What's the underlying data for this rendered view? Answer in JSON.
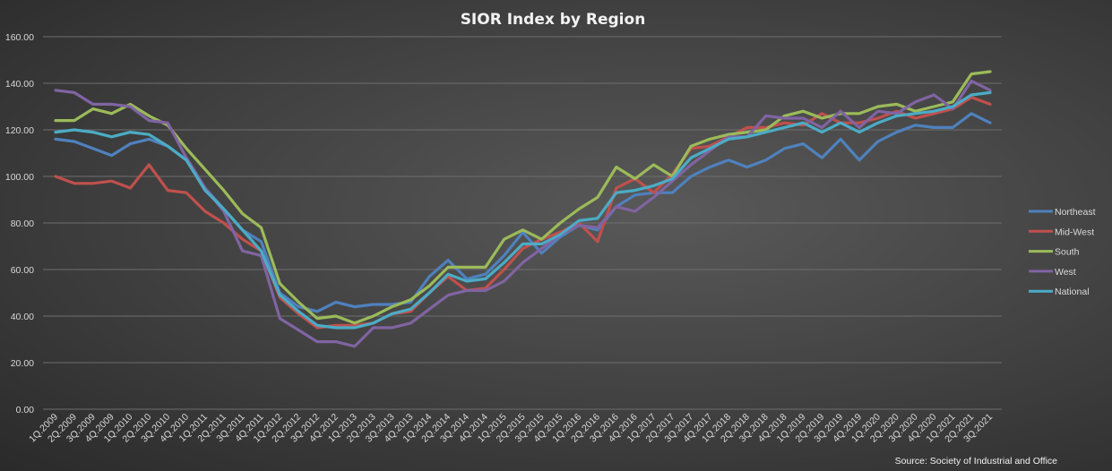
{
  "chart_data": {
    "type": "line",
    "title": "SIOR Index  by Region",
    "source": "Source: Society of Industrial and Office",
    "xlabel": "",
    "ylabel": "",
    "ylim": [
      0,
      160
    ],
    "yticks": [
      "0.00",
      "20.00",
      "40.00",
      "60.00",
      "80.00",
      "100.00",
      "120.00",
      "140.00",
      "160.00"
    ],
    "grid": true,
    "legend_position": "right",
    "categories": [
      "1Q.2009",
      "2Q.2009",
      "3Q.2009",
      "4Q.2009",
      "1Q.2010",
      "2Q.2010",
      "3Q.2010",
      "4Q.2010",
      "1Q.2011",
      "2Q.2011",
      "3Q.2011",
      "4Q.2011",
      "1Q.2012",
      "2Q.2012",
      "3Q.2012",
      "4Q.2012",
      "1Q.2013",
      "2Q.2013",
      "3Q.2013",
      "4Q.2013",
      "1Q.2014",
      "2Q.2014",
      "3Q.2014",
      "4Q.2014",
      "1Q.2015",
      "2Q.2015",
      "3Q.2015",
      "4Q.2015",
      "1Q.2016",
      "2Q.2016",
      "3Q.2016",
      "4Q.2016",
      "1Q.2017",
      "2Q.2017",
      "3Q.2017",
      "4Q.2017",
      "1Q.2018",
      "2Q.2018",
      "3Q.2018",
      "4Q.2018",
      "1Q.2019",
      "2Q.2019",
      "3Q.2019",
      "4Q.2019",
      "1Q.2020",
      "2Q.2020",
      "3Q.2020",
      "4Q.2020",
      "1Q.2021",
      "2Q.2021",
      "3Q.2021"
    ],
    "series": [
      {
        "name": "Northeast",
        "color": "#4F81BD",
        "values": [
          116,
          115,
          112,
          109,
          114,
          116,
          113,
          107,
          95,
          86,
          77,
          72,
          50,
          44,
          42,
          46,
          44,
          45,
          45,
          46,
          57,
          64,
          56,
          58,
          66,
          76,
          67,
          74,
          79,
          77,
          87,
          92,
          93,
          93,
          100,
          104,
          107,
          104,
          107,
          112,
          114,
          108,
          116,
          107,
          115,
          119,
          122,
          121,
          121,
          127,
          123
        ]
      },
      {
        "name": "Mid-West",
        "color": "#C0504D",
        "values": [
          100,
          97,
          97,
          98,
          95,
          105,
          94,
          93,
          85,
          80,
          73,
          68,
          48,
          41,
          35,
          36,
          36,
          37,
          41,
          42,
          50,
          57,
          51,
          52,
          60,
          69,
          73,
          76,
          80,
          72,
          95,
          99,
          93,
          101,
          112,
          113,
          117,
          121,
          121,
          123,
          122,
          127,
          123,
          123,
          125,
          128,
          125,
          127,
          129,
          134,
          131
        ]
      },
      {
        "name": "South",
        "color": "#9BBB59",
        "values": [
          124,
          124,
          129,
          127,
          131,
          126,
          122,
          112,
          103,
          94,
          84,
          78,
          54,
          46,
          39,
          40,
          37,
          40,
          44,
          47,
          53,
          61,
          61,
          61,
          73,
          77,
          73,
          80,
          86,
          91,
          104,
          99,
          105,
          100,
          113,
          116,
          118,
          119,
          120,
          126,
          128,
          125,
          127,
          127,
          130,
          131,
          128,
          130,
          132,
          144,
          145
        ]
      },
      {
        "name": "West",
        "color": "#8064A2",
        "values": [
          137,
          136,
          131,
          131,
          130,
          124,
          123,
          108,
          95,
          85,
          68,
          66,
          39,
          34,
          29,
          29,
          27,
          35,
          35,
          37,
          43,
          49,
          51,
          51,
          55,
          63,
          69,
          75,
          79,
          78,
          87,
          85,
          91,
          98,
          105,
          111,
          117,
          117,
          126,
          125,
          125,
          121,
          128,
          121,
          128,
          127,
          132,
          135,
          129,
          141,
          137
        ]
      },
      {
        "name": "National",
        "color": "#4BACC6",
        "values": [
          119,
          120,
          119,
          117,
          119,
          118,
          113,
          107,
          94,
          86,
          77,
          68,
          49,
          42,
          36,
          35,
          35,
          37,
          41,
          43,
          50,
          58,
          55,
          56,
          63,
          71,
          71,
          75,
          81,
          82,
          93,
          94,
          96,
          99,
          108,
          112,
          116,
          117,
          119,
          121,
          123,
          119,
          123,
          119,
          123,
          126,
          127,
          128,
          130,
          135,
          136
        ]
      }
    ]
  }
}
